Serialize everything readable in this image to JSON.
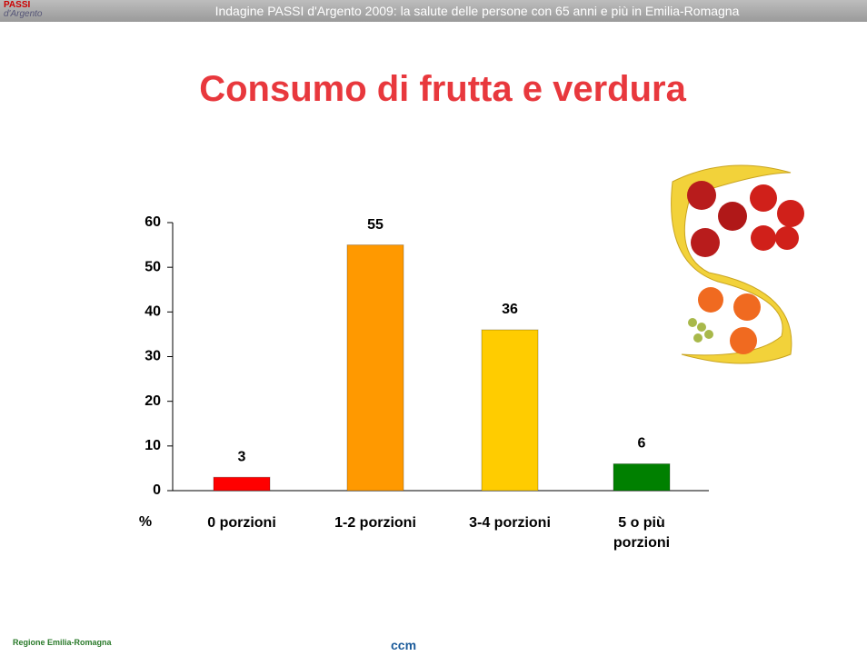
{
  "header": {
    "logo": "PASSI",
    "logo_sub": "d'Argento",
    "text": "Indagine PASSI d'Argento 2009: la salute delle persone con 65 anni e più in Emilia-Romagna"
  },
  "footer": {
    "region": "Regione Emilia-Romagna",
    "ccm": "ccm"
  },
  "chart_data": {
    "type": "bar",
    "title": "Consumo di frutta e verdura",
    "y_label": "%",
    "categories": [
      "0 porzioni",
      "1-2 porzioni",
      "3-4 porzioni",
      "5 o più porzioni"
    ],
    "values": [
      3,
      55,
      36,
      6
    ],
    "colors": [
      "#ff0000",
      "#ff9900",
      "#ffcc00",
      "#008000"
    ],
    "ylim": [
      0,
      60
    ],
    "yticks": [
      0,
      10,
      20,
      30,
      40,
      50,
      60
    ]
  }
}
